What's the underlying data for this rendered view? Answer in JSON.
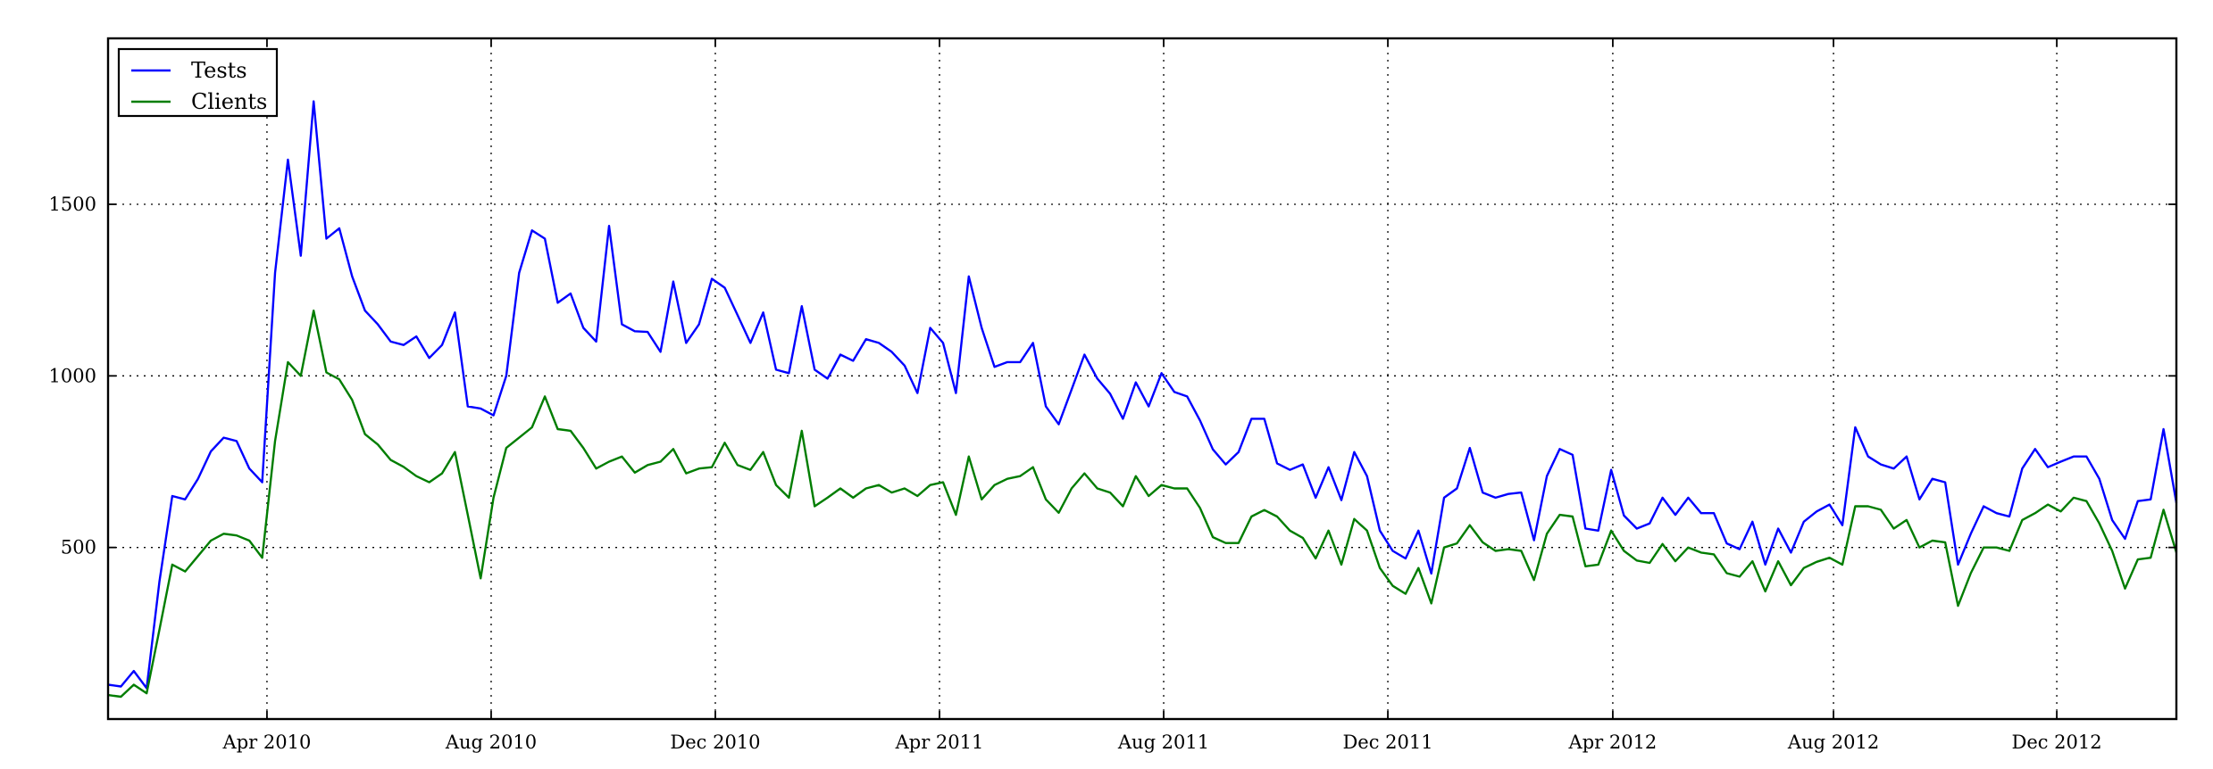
{
  "chart_data": {
    "type": "line",
    "title": "",
    "xlabel": "",
    "ylabel": "",
    "x_unit": "weekly samples, Jan 2010 - Jan 2013",
    "grid": "dotted",
    "background_color": "#ffffff",
    "axis_color": "#000000",
    "ylim": [
      0,
      1985
    ],
    "y_ticks": [
      500,
      1000,
      1500
    ],
    "x_ticks": [
      {
        "pos": 12.37,
        "label": "Apr 2010"
      },
      {
        "pos": 29.82,
        "label": "Aug 2010"
      },
      {
        "pos": 47.27,
        "label": "Dec 2010"
      },
      {
        "pos": 64.72,
        "label": "Apr 2011"
      },
      {
        "pos": 82.17,
        "label": "Aug 2011"
      },
      {
        "pos": 99.62,
        "label": "Dec 2011"
      },
      {
        "pos": 117.13,
        "label": "Apr 2012"
      },
      {
        "pos": 134.31,
        "label": "Aug 2012"
      },
      {
        "pos": 151.69,
        "label": "Dec 2012"
      }
    ],
    "legend": {
      "position": "upper-left",
      "entries": [
        "Tests",
        "Clients"
      ]
    },
    "series": [
      {
        "name": "Tests",
        "color": "#0000ff",
        "values": [
          100,
          95,
          140,
          90,
          400,
          650,
          640,
          700,
          780,
          820,
          810,
          730,
          690,
          1300,
          1630,
          1350,
          1800,
          1400,
          1430,
          1290,
          1190,
          1150,
          1100,
          1090,
          1115,
          1052,
          1090,
          1185,
          911,
          905,
          885,
          1000,
          1300,
          1424,
          1400,
          1213,
          1240,
          1140,
          1100,
          1437,
          1150,
          1130,
          1128,
          1070,
          1275,
          1096,
          1150,
          1283,
          1257,
          1177,
          1096,
          1185,
          1018,
          1008,
          1203,
          1018,
          992,
          1062,
          1044,
          1107,
          1096,
          1070,
          1030,
          950,
          1140,
          1096,
          950,
          1290,
          1140,
          1026,
          1040,
          1040,
          1096,
          911,
          859,
          960,
          1062,
          992,
          948,
          875,
          981,
          911,
          1008,
          953,
          940,
          870,
          786,
          742,
          778,
          875,
          875,
          745,
          726,
          742,
          645,
          734,
          638,
          778,
          708,
          549,
          490,
          468,
          549,
          424,
          645,
          672,
          790,
          660,
          645,
          656,
          660,
          521,
          708,
          787,
          770,
          555,
          549,
          726,
          593,
          555,
          570,
          645,
          595,
          645,
          600,
          600,
          512,
          495,
          575,
          450,
          555,
          485,
          575,
          605,
          625,
          565,
          850,
          765,
          742,
          730,
          765,
          640,
          700,
          690,
          450,
          540,
          620,
          600,
          590,
          730,
          787,
          734,
          750,
          765,
          765,
          700,
          580,
          525,
          635,
          640,
          845,
          630
        ]
      },
      {
        "name": "Clients",
        "color": "#007d00",
        "values": [
          70,
          65,
          100,
          75,
          260,
          450,
          430,
          475,
          520,
          540,
          535,
          520,
          470,
          810,
          1040,
          1000,
          1190,
          1010,
          990,
          930,
          830,
          800,
          755,
          735,
          708,
          690,
          716,
          778,
          595,
          410,
          645,
          790,
          820,
          850,
          940,
          845,
          840,
          790,
          730,
          750,
          765,
          718,
          740,
          750,
          787,
          716,
          730,
          734,
          805,
          740,
          726,
          778,
          682,
          645,
          840,
          620,
          645,
          672,
          645,
          672,
          682,
          660,
          672,
          650,
          682,
          690,
          595,
          765,
          640,
          682,
          700,
          708,
          734,
          640,
          601,
          672,
          716,
          672,
          660,
          620,
          708,
          650,
          682,
          672,
          672,
          615,
          530,
          513,
          513,
          590,
          609,
          590,
          549,
          528,
          468,
          549,
          450,
          583,
          549,
          440,
          388,
          365,
          440,
          337,
          500,
          512,
          565,
          515,
          490,
          495,
          490,
          405,
          540,
          595,
          590,
          445,
          450,
          549,
          490,
          462,
          455,
          510,
          460,
          500,
          485,
          480,
          425,
          415,
          460,
          372,
          460,
          390,
          440,
          458,
          470,
          450,
          620,
          620,
          610,
          555,
          580,
          500,
          520,
          515,
          330,
          425,
          500,
          500,
          490,
          580,
          600,
          625,
          605,
          645,
          635,
          570,
          490,
          380,
          465,
          470,
          610,
          485
        ]
      }
    ]
  },
  "colors": {
    "background": "#ffffff",
    "axis": "#000000",
    "grid": "#000000",
    "text": "#000000",
    "tests_line": "#0000ff",
    "clients_line": "#007d00"
  }
}
